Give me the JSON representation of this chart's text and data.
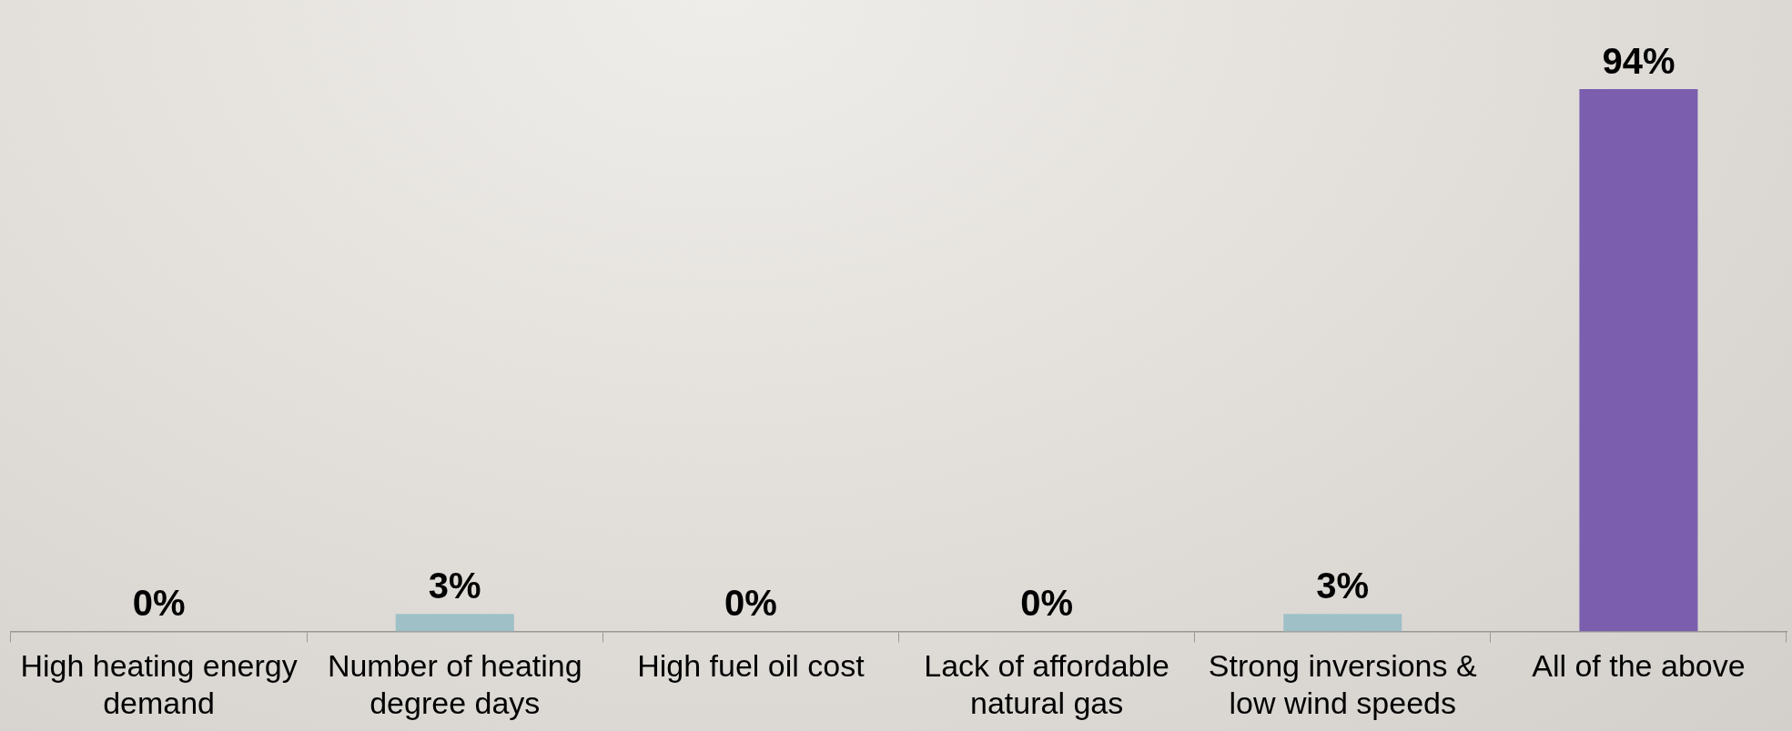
{
  "chart_data": {
    "type": "bar",
    "categories": [
      "High heating energy demand",
      "Number of heating degree days",
      "High fuel oil cost",
      "Lack of affordable natural gas",
      "Strong inversions & low wind speeds",
      "All of the above"
    ],
    "values": [
      0,
      3,
      0,
      0,
      3,
      94
    ],
    "colors": [
      "#9fc0c7",
      "#9fc0c7",
      "#9fc0c7",
      "#9fc0c7",
      "#9fc0c7",
      "#7b5fae"
    ],
    "value_labels": [
      "0%",
      "3%",
      "0%",
      "0%",
      "3%",
      "94%"
    ],
    "grid": false,
    "legend": false
  }
}
